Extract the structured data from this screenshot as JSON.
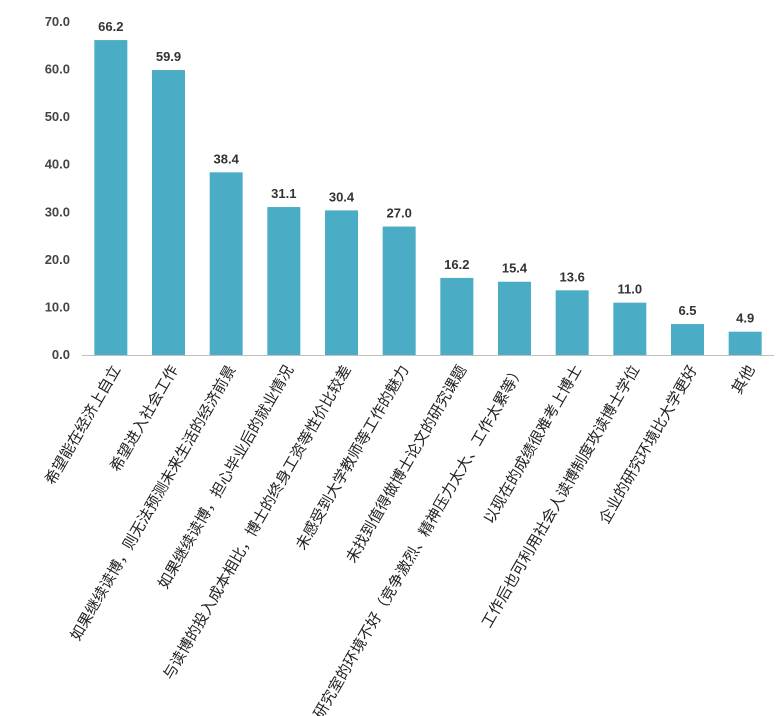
{
  "chart_data": {
    "type": "bar",
    "title": "",
    "xlabel": "",
    "ylabel": "",
    "ylim": [
      0,
      70
    ],
    "yticks": [
      "0.0",
      "10.0",
      "20.0",
      "30.0",
      "40.0",
      "50.0",
      "60.0",
      "70.0"
    ],
    "grid": false,
    "legend": "none",
    "bar_color": "#4bacc6",
    "categories": [
      "希望能在经济上自立",
      "希望进入社会工作",
      "如果继续读博，则无法预测未来生活的经济前景",
      "如果继续读博，担心毕业后的就业情况",
      "与读博的投入成本相比，博士的终身工资等性价比较差",
      "未感受到大学教师等工作的魅力",
      "未找到值得做博士论文的研究课题",
      "研究室的环境不好（竞争激烈、精神压力太大、工作太累等）",
      "以现在的成绩很难考上博士",
      "工作后也可利用社会人读博制度攻读博士学位",
      "企业的研究环境比大学更好",
      "其他"
    ],
    "values": [
      66.2,
      59.9,
      38.4,
      31.1,
      30.4,
      27.0,
      16.2,
      15.4,
      13.6,
      11.0,
      6.5,
      4.9
    ],
    "value_labels": [
      "66.2",
      "59.9",
      "38.4",
      "31.1",
      "30.4",
      "27.0",
      "16.2",
      "15.4",
      "13.6",
      "11.0",
      "6.5",
      "4.9"
    ]
  }
}
